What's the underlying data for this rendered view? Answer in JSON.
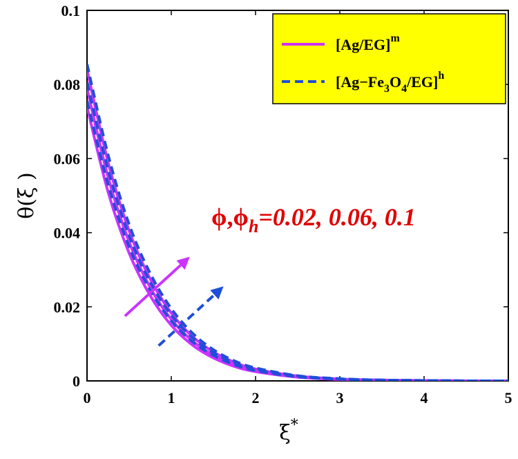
{
  "chart_data": {
    "type": "line",
    "xlabel": {
      "base": "ξ",
      "sup": "*"
    },
    "ylabel": "θ(ξ )",
    "xlim": [
      0,
      5
    ],
    "ylim": [
      0,
      0.1
    ],
    "x_ticks": [
      "0",
      "1",
      "2",
      "3",
      "4",
      "5"
    ],
    "y_ticks": [
      "0",
      "0.02",
      "0.04",
      "0.06",
      "0.08",
      "0.1"
    ],
    "grid": false,
    "legend_position": "top-right",
    "legend": [
      {
        "base": "[Ag/EG]",
        "sup": "m",
        "color": "#cc33ff",
        "style": "solid"
      },
      {
        "pre": "[Ag−Fe",
        "sub1": "3",
        "mid": "O",
        "sub2": "4",
        "post": "/EG]",
        "sup": "h",
        "color": "#1f4fd8",
        "style": "dashed"
      }
    ],
    "annotation": {
      "phi": "ϕ,ϕ",
      "h": "h",
      "values": "=0.02, 0.06, 0.1",
      "color": "#e00000"
    },
    "x": [
      0,
      0.25,
      0.5,
      0.75,
      1.0,
      1.25,
      1.5,
      1.75,
      2.0,
      2.5,
      3.0,
      3.5,
      4.0,
      4.5,
      5.0
    ],
    "series": [
      {
        "name": "[Ag/EG]m ϕ=0.02",
        "color": "#cc33ff",
        "style": "solid",
        "values": [
          0.074,
          0.051,
          0.0345,
          0.023,
          0.015,
          0.0097,
          0.0062,
          0.0039,
          0.0025,
          0.001,
          0.0004,
          0.0002,
          0.0001,
          0.0,
          0.0
        ]
      },
      {
        "name": "[Ag/EG]m ϕ=0.06",
        "color": "#cc33ff",
        "style": "solid",
        "values": [
          0.079,
          0.055,
          0.0375,
          0.0252,
          0.0166,
          0.0108,
          0.0069,
          0.0044,
          0.0028,
          0.0011,
          0.0004,
          0.0002,
          0.0001,
          0.0,
          0.0
        ]
      },
      {
        "name": "[Ag/EG]m ϕ=0.1",
        "color": "#cc33ff",
        "style": "solid",
        "values": [
          0.084,
          0.059,
          0.0405,
          0.0275,
          0.0183,
          0.012,
          0.0078,
          0.005,
          0.0032,
          0.0013,
          0.0005,
          0.0002,
          0.0001,
          0.0,
          0.0
        ]
      },
      {
        "name": "[Ag−Fe3O4/EG]h ϕh=0.02",
        "color": "#1f4fd8",
        "style": "dashed",
        "values": [
          0.0755,
          0.053,
          0.0362,
          0.0245,
          0.0162,
          0.0106,
          0.0069,
          0.0044,
          0.0028,
          0.0011,
          0.0005,
          0.0002,
          0.0001,
          0.0,
          0.0
        ]
      },
      {
        "name": "[Ag−Fe3O4/EG]h ϕh=0.06",
        "color": "#1f4fd8",
        "style": "dashed",
        "values": [
          0.0805,
          0.057,
          0.0392,
          0.0267,
          0.0178,
          0.0117,
          0.0076,
          0.0049,
          0.0031,
          0.0013,
          0.0005,
          0.0002,
          0.0001,
          0.0,
          0.0
        ]
      },
      {
        "name": "[Ag−Fe3O4/EG]h ϕh=0.1",
        "color": "#1f4fd8",
        "style": "dashed",
        "values": [
          0.0855,
          0.061,
          0.0422,
          0.029,
          0.0195,
          0.0129,
          0.0084,
          0.0054,
          0.0035,
          0.0014,
          0.0006,
          0.0002,
          0.0001,
          0.0,
          0.0
        ]
      }
    ],
    "arrows": [
      {
        "color": "#cc33ff",
        "style": "solid",
        "from": [
          0.45,
          0.0175
        ],
        "to": [
          1.22,
          0.0335
        ]
      },
      {
        "color": "#1f4fd8",
        "style": "dashed",
        "from": [
          0.85,
          0.0095
        ],
        "to": [
          1.62,
          0.0255
        ]
      }
    ]
  }
}
